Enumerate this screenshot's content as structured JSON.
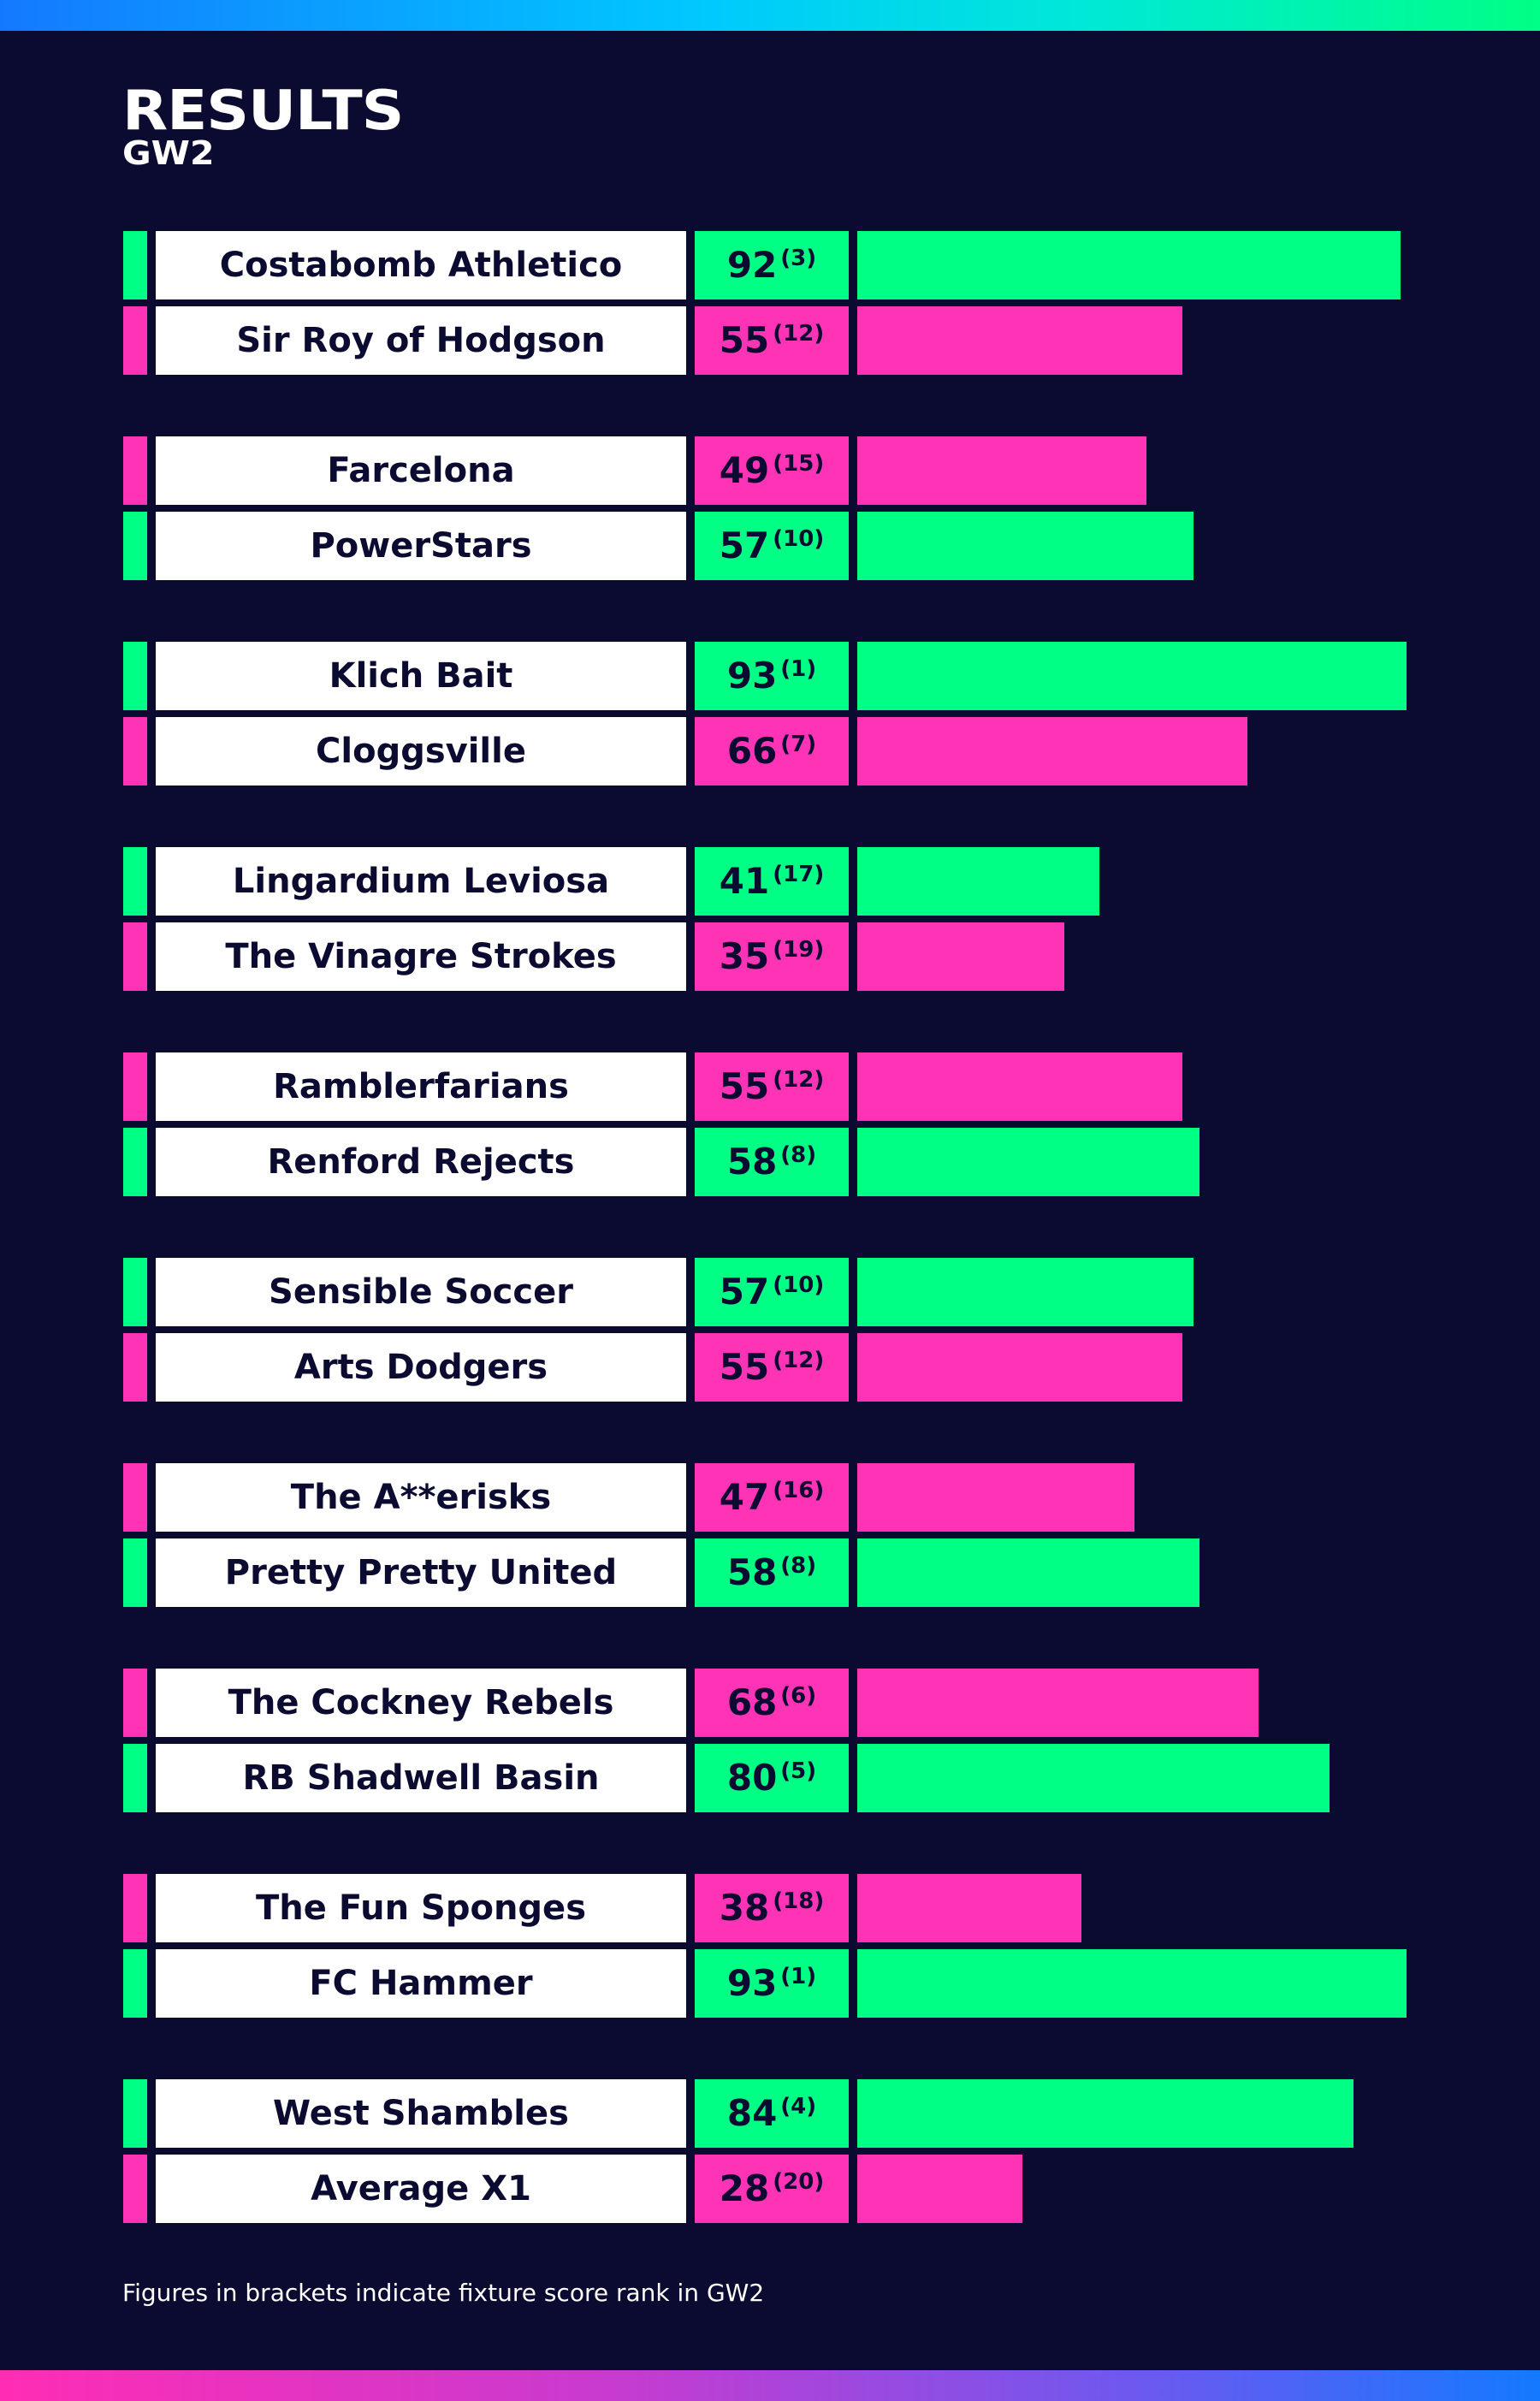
{
  "colors": {
    "winner": "#00ff85",
    "loser": "#ff33b5",
    "background": "#0b0a30",
    "name_bg": "#ffffff"
  },
  "header": {
    "title": "RESULTS",
    "subtitle": "GW2"
  },
  "footnote": "Figures in brackets indicate fixture score rank in GW2",
  "chart_data": {
    "type": "bar",
    "title": "RESULTS",
    "subtitle": "GW2",
    "ylim": [
      0,
      93
    ],
    "legend": "none",
    "matches": [
      {
        "teams": [
          {
            "name": "Costabomb Athletico",
            "points": 92,
            "rank": "(3)",
            "result": "win"
          },
          {
            "name": "Sir Roy of Hodgson",
            "points": 55,
            "rank": "(12)",
            "result": "loss"
          }
        ]
      },
      {
        "teams": [
          {
            "name": "Farcelona",
            "points": 49,
            "rank": "(15)",
            "result": "loss"
          },
          {
            "name": "PowerStars",
            "points": 57,
            "rank": "(10)",
            "result": "win"
          }
        ]
      },
      {
        "teams": [
          {
            "name": "Klich Bait",
            "points": 93,
            "rank": "(1)",
            "result": "win"
          },
          {
            "name": "Cloggsville",
            "points": 66,
            "rank": "(7)",
            "result": "loss"
          }
        ]
      },
      {
        "teams": [
          {
            "name": "Lingardium Leviosa",
            "points": 41,
            "rank": "(17)",
            "result": "win"
          },
          {
            "name": "The Vinagre Strokes",
            "points": 35,
            "rank": "(19)",
            "result": "loss"
          }
        ]
      },
      {
        "teams": [
          {
            "name": "Ramblerfarians",
            "points": 55,
            "rank": "(12)",
            "result": "loss"
          },
          {
            "name": "Renford Rejects",
            "points": 58,
            "rank": "(8)",
            "result": "win"
          }
        ]
      },
      {
        "teams": [
          {
            "name": "Sensible Soccer",
            "points": 57,
            "rank": "(10)",
            "result": "win"
          },
          {
            "name": "Arts Dodgers",
            "points": 55,
            "rank": "(12)",
            "result": "loss"
          }
        ]
      },
      {
        "teams": [
          {
            "name": "The A**erisks",
            "points": 47,
            "rank": "(16)",
            "result": "loss"
          },
          {
            "name": "Pretty Pretty United",
            "points": 58,
            "rank": "(8)",
            "result": "win"
          }
        ]
      },
      {
        "teams": [
          {
            "name": "The Cockney Rebels",
            "points": 68,
            "rank": "(6)",
            "result": "loss"
          },
          {
            "name": "RB Shadwell Basin",
            "points": 80,
            "rank": "(5)",
            "result": "win"
          }
        ]
      },
      {
        "teams": [
          {
            "name": "The Fun Sponges",
            "points": 38,
            "rank": "(18)",
            "result": "loss"
          },
          {
            "name": "FC Hammer",
            "points": 93,
            "rank": "(1)",
            "result": "win"
          }
        ]
      },
      {
        "teams": [
          {
            "name": "West Shambles",
            "points": 84,
            "rank": "(4)",
            "result": "win"
          },
          {
            "name": "Average X1",
            "points": 28,
            "rank": "(20)",
            "result": "loss"
          }
        ]
      }
    ]
  }
}
